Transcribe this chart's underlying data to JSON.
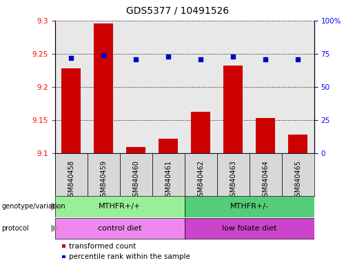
{
  "title": "GDS5377 / 10491526",
  "samples": [
    "GSM840458",
    "GSM840459",
    "GSM840460",
    "GSM840461",
    "GSM840462",
    "GSM840463",
    "GSM840464",
    "GSM840465"
  ],
  "transformed_count": [
    9.228,
    9.295,
    9.11,
    9.122,
    9.163,
    9.232,
    9.153,
    9.128
  ],
  "percentile_rank": [
    72,
    74,
    71,
    73,
    71,
    73,
    71,
    71
  ],
  "ylim_left": [
    9.1,
    9.3
  ],
  "ylim_right": [
    0,
    100
  ],
  "yticks_left": [
    9.1,
    9.15,
    9.2,
    9.25,
    9.3
  ],
  "yticks_right": [
    0,
    25,
    50,
    75,
    100
  ],
  "bar_color": "#cc0000",
  "dot_color": "#0000cc",
  "genotype_groups": [
    {
      "label": "MTHFR+/+",
      "start": 0,
      "end": 4,
      "color": "#99ee99"
    },
    {
      "label": "MTHFR+/-",
      "start": 4,
      "end": 8,
      "color": "#55cc77"
    }
  ],
  "protocol_groups": [
    {
      "label": "control diet",
      "start": 0,
      "end": 4,
      "color": "#ee88ee"
    },
    {
      "label": "low folate diet",
      "start": 4,
      "end": 8,
      "color": "#cc44cc"
    }
  ],
  "legend_items": [
    {
      "color": "#cc0000",
      "label": "transformed count"
    },
    {
      "color": "#0000cc",
      "label": "percentile rank within the sample"
    }
  ],
  "title_fontsize": 10,
  "tick_fontsize": 7.5,
  "annot_fontsize": 8
}
